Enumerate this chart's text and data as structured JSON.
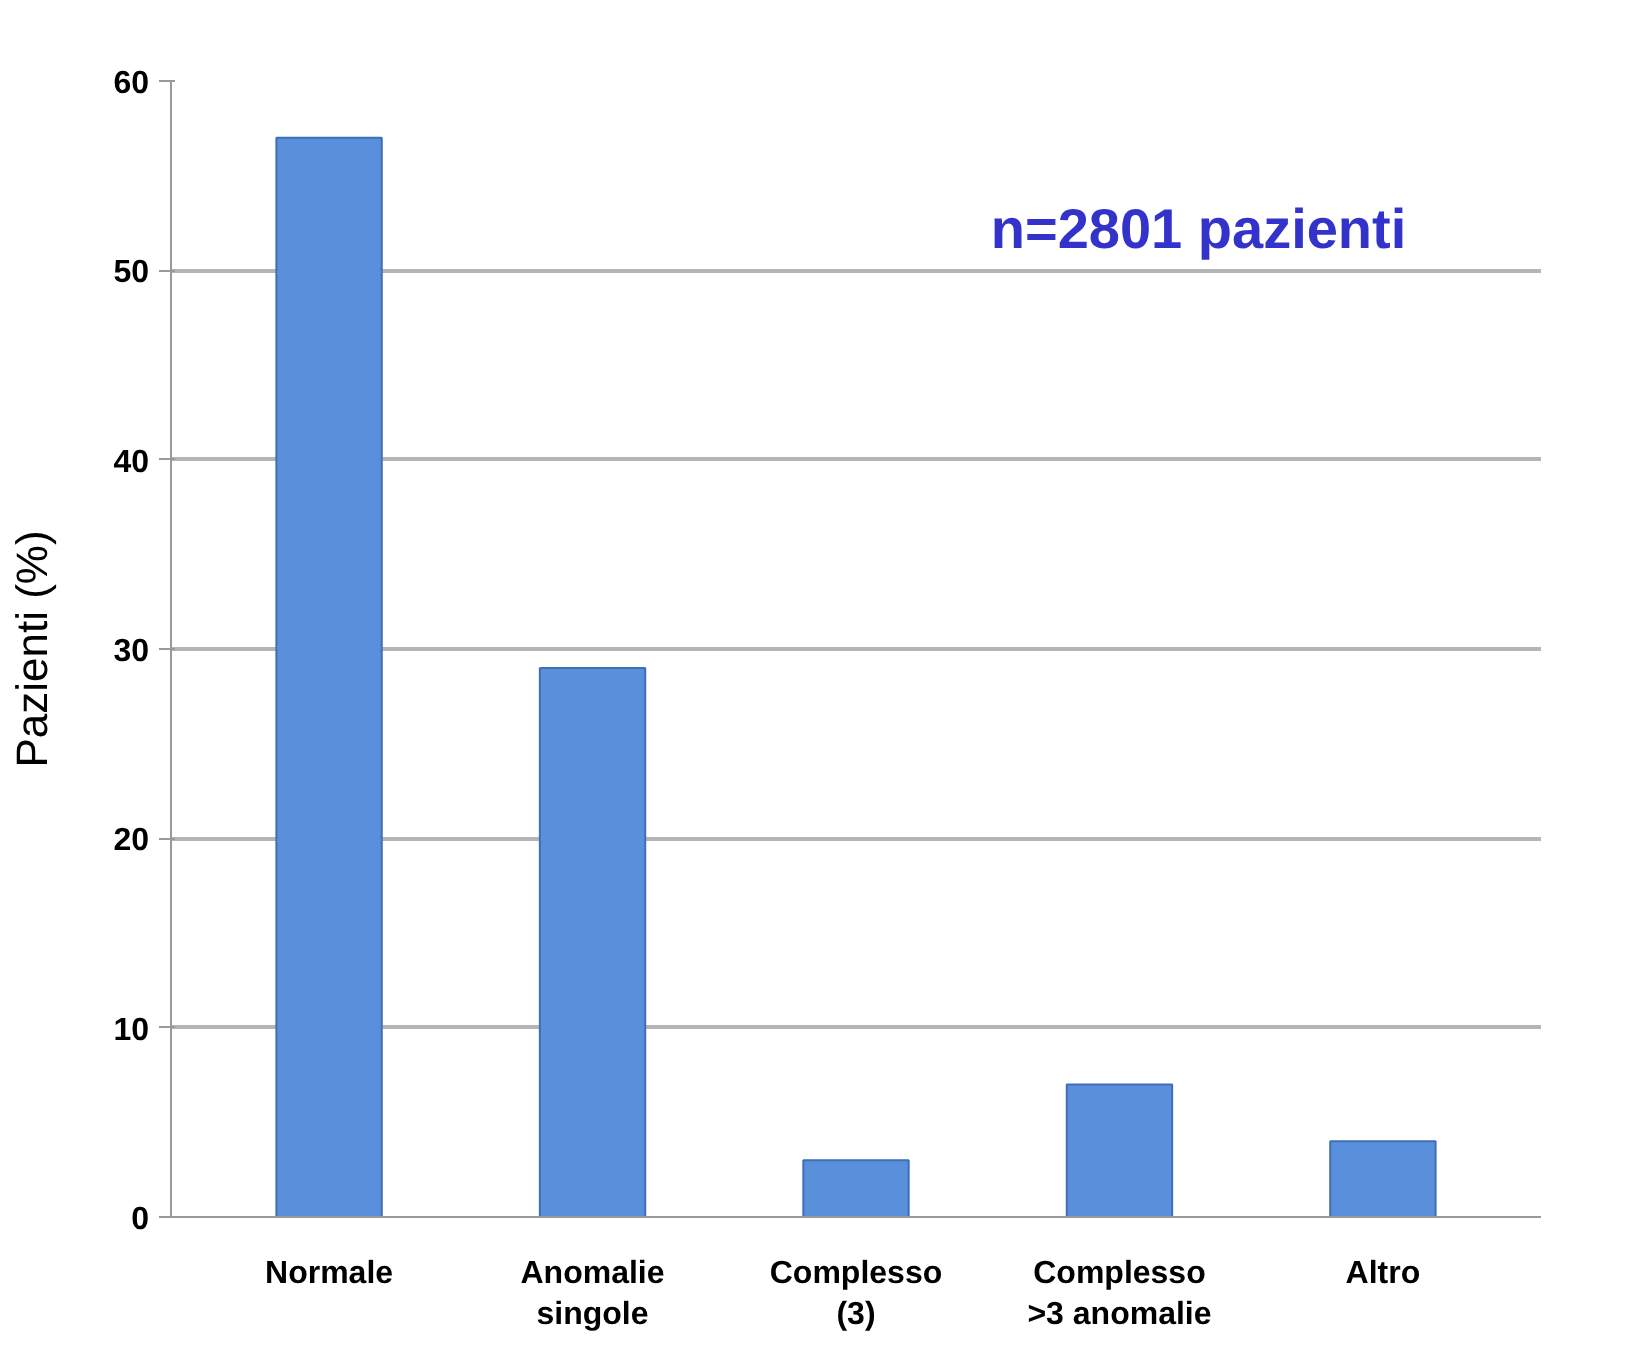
{
  "chart_data": {
    "type": "bar",
    "ylabel": "Pazienti (%)",
    "categories": [
      "Normale",
      "Anomalie singole",
      "Complesso (3)",
      "Complesso >3 anomalie",
      "Altro"
    ],
    "values": [
      57,
      29,
      3,
      7,
      4
    ],
    "color": "#5a8fdc",
    "ylim": [
      0,
      60
    ],
    "yticks": [
      0,
      10,
      20,
      30,
      40,
      50,
      60
    ],
    "grid": "y",
    "annotations": [
      "n=2801 pazienti"
    ]
  }
}
